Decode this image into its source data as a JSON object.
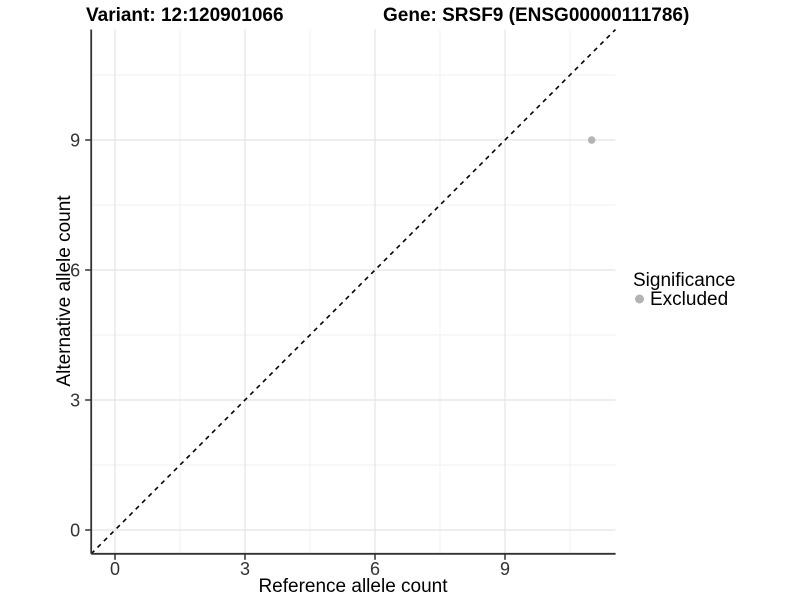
{
  "chart_data": {
    "type": "scatter",
    "titles": {
      "left": "Variant: 12:120901066",
      "right": "Gene: SRSF9 (ENSG00000111786)"
    },
    "xlabel": "Reference allele count",
    "ylabel": "Alternative allele count",
    "xlim": [
      -0.55,
      11.55
    ],
    "ylim": [
      -0.55,
      11.55
    ],
    "xticks": [
      0,
      3,
      6,
      9
    ],
    "yticks": [
      0,
      3,
      6,
      9
    ],
    "grid": "major+minor",
    "minor_interval": 1.5,
    "reference_line": {
      "type": "identity y=x",
      "style": "dashed",
      "color": "#000000"
    },
    "points": [
      {
        "x": 11,
        "y": 9,
        "significance": "Excluded",
        "color": "#b5b5b5"
      }
    ],
    "legend": {
      "position": "right",
      "title": "Significance",
      "entries": [
        {
          "label": "Excluded",
          "color": "#b3b3b3"
        }
      ]
    },
    "colors": {
      "grid_major": "#e4e4e4",
      "grid_minor": "#f0f0f0",
      "axis_line": "#333333",
      "tick_mark": "#333333",
      "tick_label": "#333333",
      "point": "#b5b5b5"
    }
  }
}
